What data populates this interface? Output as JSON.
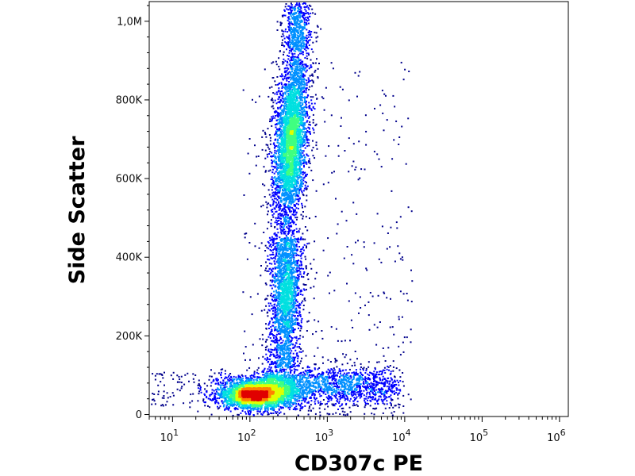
{
  "chart_data": {
    "type": "scatter",
    "title": "",
    "xlabel": "CD307c PE",
    "ylabel": "Side Scatter",
    "x_scale": "log",
    "xlim": [
      5,
      1300000
    ],
    "ylim": [
      -5000,
      1050000
    ],
    "x_ticks": [
      {
        "value": 10,
        "base": "10",
        "exp": "1"
      },
      {
        "value": 100,
        "base": "10",
        "exp": "2"
      },
      {
        "value": 1000,
        "base": "10",
        "exp": "3"
      },
      {
        "value": 10000,
        "base": "10",
        "exp": "4"
      },
      {
        "value": 100000,
        "base": "10",
        "exp": "5"
      },
      {
        "value": 1000000,
        "base": "10",
        "exp": "6"
      }
    ],
    "y_ticks": [
      {
        "value": 0,
        "label": "0"
      },
      {
        "value": 200000,
        "label": "200K"
      },
      {
        "value": 400000,
        "label": "400K"
      },
      {
        "value": 600000,
        "label": "600K"
      },
      {
        "value": 800000,
        "label": "800K"
      },
      {
        "value": 1000000,
        "label": "1,0M"
      }
    ],
    "grid": false,
    "legend": "none",
    "colormap": [
      "#00008b",
      "#0000ff",
      "#0090ff",
      "#00e0e0",
      "#40ff80",
      "#e0ff00",
      "#ff8000",
      "#e00000"
    ],
    "populations": [
      {
        "name": "low-SSC cluster",
        "x_center_log": 2.1,
        "x_spread_log": 0.3,
        "y_center": 55000,
        "y_spread": 22000,
        "relative_count": 0.3
      },
      {
        "name": "horizontal tail",
        "x_range_log": [
          2.2,
          3.9
        ],
        "y_center": 80000,
        "y_spread": 25000,
        "relative_count": 0.18
      },
      {
        "name": "mid column",
        "x_center_log": 2.45,
        "x_spread_log": 0.12,
        "y_range": [
          120000,
          450000
        ],
        "relative_count": 0.17
      },
      {
        "name": "high-SSC population",
        "x_center_log": 2.5,
        "x_spread_log": 0.12,
        "y_center": 700000,
        "y_spread": 130000,
        "relative_count": 0.35
      }
    ]
  }
}
